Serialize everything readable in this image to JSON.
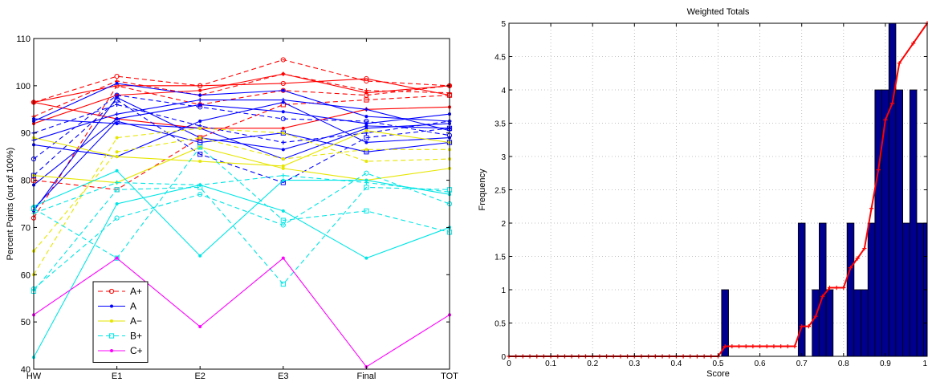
{
  "chart_data": [
    {
      "type": "line",
      "title": "",
      "xlabel": "",
      "ylabel": "Percent Points (out of 100%)",
      "categories": [
        "HW",
        "E1",
        "E2",
        "E3",
        "Final",
        "TOT"
      ],
      "ylim": [
        40,
        110
      ],
      "yticks": [
        40,
        50,
        60,
        70,
        80,
        90,
        100,
        110
      ],
      "grid": false,
      "legend_position": "bottom-left",
      "legend": [
        {
          "name": "A+",
          "color": "#ff0000",
          "dash": "dashed",
          "marker": "circle"
        },
        {
          "name": "A",
          "color": "#0000ff",
          "dash": "solid",
          "marker": "dot"
        },
        {
          "name": "A−",
          "color": "#e6e600",
          "dash": "solid",
          "marker": "dot"
        },
        {
          "name": "B+",
          "color": "#00e5e5",
          "dash": "dashed",
          "marker": "square"
        },
        {
          "name": "C+",
          "color": "#ff00ff",
          "dash": "solid",
          "marker": "dot"
        }
      ],
      "series": [
        {
          "group": "A+",
          "color": "#ff0000",
          "dash": "dashed",
          "marker": "circle",
          "values": [
            96.5,
            102,
            100,
            105.5,
            101,
            100
          ]
        },
        {
          "group": "A+",
          "color": "#ff0000",
          "dash": "dashed",
          "marker": "plus",
          "values": [
            93.5,
            101,
            98,
            102.5,
            99,
            98.5
          ]
        },
        {
          "group": "A+",
          "color": "#ff0000",
          "dash": "dashed",
          "marker": "circle",
          "values": [
            72,
            100,
            96,
            99,
            98,
            100
          ]
        },
        {
          "group": "A+",
          "color": "#ff0000",
          "dash": "dashed",
          "marker": "square",
          "values": [
            80,
            78,
            89,
            96,
            97,
            98
          ]
        },
        {
          "group": "A+",
          "color": "#ff0000",
          "dash": "solid",
          "marker": "circle",
          "values": [
            96.5,
            100,
            100,
            100.5,
            101.5,
            98
          ]
        },
        {
          "group": "A+",
          "color": "#ff0000",
          "dash": "solid",
          "marker": "dot",
          "values": [
            92,
            98,
            99,
            102.5,
            98.5,
            100
          ]
        },
        {
          "group": "A+",
          "color": "#ff0000",
          "dash": "solid",
          "marker": "dot",
          "values": [
            96.5,
            93,
            91,
            91,
            95,
            95.5
          ]
        },
        {
          "group": "A",
          "color": "#0000ff",
          "dash": "solid",
          "marker": "dot",
          "values": [
            92.5,
            100.5,
            98,
            99,
            93.5,
            92.5
          ]
        },
        {
          "group": "A",
          "color": "#0000ff",
          "dash": "solid",
          "marker": "dot",
          "values": [
            79,
            93,
            96,
            94.5,
            92,
            94
          ]
        },
        {
          "group": "A",
          "color": "#0000ff",
          "dash": "solid",
          "marker": "dot",
          "values": [
            73.5,
            97.5,
            89,
            86.5,
            91.5,
            91
          ]
        },
        {
          "group": "A",
          "color": "#0000ff",
          "dash": "solid",
          "marker": "dot",
          "values": [
            87.5,
            85,
            92.5,
            96.5,
            88,
            89
          ]
        },
        {
          "group": "A",
          "color": "#0000ff",
          "dash": "solid",
          "marker": "dot",
          "values": [
            93,
            92,
            91,
            84.5,
            91,
            92
          ]
        },
        {
          "group": "A",
          "color": "#0000ff",
          "dash": "solid",
          "marker": "plus",
          "values": [
            88.5,
            94,
            97,
            97,
            95,
            90.5
          ]
        },
        {
          "group": "A",
          "color": "#0000ff",
          "dash": "solid",
          "marker": "square",
          "values": [
            74,
            92.5,
            88,
            90,
            86,
            88
          ]
        },
        {
          "group": "A",
          "color": "#0000ff",
          "dash": "dashed",
          "marker": "circle",
          "values": [
            84.5,
            98,
            95.5,
            93,
            92.5,
            89.5
          ]
        },
        {
          "group": "A",
          "color": "#0000ff",
          "dash": "dashed",
          "marker": "square",
          "values": [
            81,
            97,
            85.5,
            79.5,
            89,
            91
          ]
        },
        {
          "group": "A",
          "color": "#0000ff",
          "dash": "dashed",
          "marker": "plus",
          "values": [
            90,
            96,
            91.5,
            88,
            90,
            92.5
          ]
        },
        {
          "group": "A−",
          "color": "#e6e600",
          "dash": "solid",
          "marker": "dot",
          "values": [
            89,
            85,
            84,
            83,
            90.5,
            88
          ]
        },
        {
          "group": "A−",
          "color": "#e6e600",
          "dash": "solid",
          "marker": "dot",
          "values": [
            81,
            79.5,
            87,
            82.5,
            80,
            82.5
          ]
        },
        {
          "group": "A−",
          "color": "#e6e600",
          "dash": "dashed",
          "marker": "dot",
          "values": [
            60,
            89,
            91,
            90,
            84,
            84.5
          ]
        },
        {
          "group": "A−",
          "color": "#e6e600",
          "dash": "dashed",
          "marker": "dot",
          "values": [
            65,
            86,
            89,
            84.5,
            86.5,
            86.5
          ]
        },
        {
          "group": "B+",
          "color": "#00e5e5",
          "dash": "solid",
          "marker": "dot",
          "values": [
            74.5,
            82,
            64,
            80,
            80,
            77
          ]
        },
        {
          "group": "B+",
          "color": "#00e5e5",
          "dash": "solid",
          "marker": "dot",
          "values": [
            42.5,
            75,
            79,
            73.5,
            63.5,
            70
          ]
        },
        {
          "group": "B+",
          "color": "#00e5e5",
          "dash": "dashed",
          "marker": "circle",
          "values": [
            57,
            72,
            77,
            70.5,
            81.5,
            75
          ]
        },
        {
          "group": "B+",
          "color": "#00e5e5",
          "dash": "dashed",
          "marker": "square",
          "values": [
            74,
            63.5,
            87,
            71.5,
            73.5,
            69
          ]
        },
        {
          "group": "B+",
          "color": "#00e5e5",
          "dash": "dashed",
          "marker": "square",
          "values": [
            56.5,
            78,
            78.5,
            58,
            78.5,
            78
          ]
        },
        {
          "group": "B+",
          "color": "#00e5e5",
          "dash": "dashed",
          "marker": "plus",
          "values": [
            73,
            79.5,
            79,
            81,
            79.5,
            77.5
          ]
        },
        {
          "group": "C+",
          "color": "#ff00ff",
          "dash": "solid",
          "marker": "dot",
          "values": [
            51.5,
            63.5,
            49,
            63.5,
            40.5,
            51.5
          ]
        }
      ]
    },
    {
      "type": "bar",
      "title": "Weighted Totals",
      "xlabel": "Score",
      "ylabel": "Frequency",
      "xlim": [
        0,
        1
      ],
      "ylim": [
        0,
        5
      ],
      "xticks": [
        0,
        0.1,
        0.2,
        0.3,
        0.4,
        0.5,
        0.6,
        0.7,
        0.8,
        0.9,
        1
      ],
      "xtick_labels": [
        "0",
        "0.1",
        "0.2",
        "0.3",
        "0.4",
        "0.5",
        "0.6",
        "0.7",
        "0.8",
        "0.9",
        "1"
      ],
      "yticks": [
        0,
        0.5,
        1,
        1.5,
        2,
        2.5,
        3,
        3.5,
        4,
        4.5,
        5
      ],
      "ytick_labels": [
        "0",
        "0.5",
        "1",
        "1.5",
        "2",
        "2.5",
        "3",
        "3.5",
        "4",
        "4.5",
        "5"
      ],
      "grid": true,
      "bar_color": "#00008f",
      "bar_width": 0.0167,
      "bars": [
        {
          "x": 0.5167,
          "value": 1
        },
        {
          "x": 0.7,
          "value": 2
        },
        {
          "x": 0.7333,
          "value": 1
        },
        {
          "x": 0.75,
          "value": 2
        },
        {
          "x": 0.7667,
          "value": 1
        },
        {
          "x": 0.8167,
          "value": 2
        },
        {
          "x": 0.8333,
          "value": 1
        },
        {
          "x": 0.85,
          "value": 1
        },
        {
          "x": 0.8667,
          "value": 2
        },
        {
          "x": 0.8833,
          "value": 4
        },
        {
          "x": 0.9,
          "value": 4
        },
        {
          "x": 0.9167,
          "value": 5
        },
        {
          "x": 0.9333,
          "value": 4
        },
        {
          "x": 0.95,
          "value": 2
        },
        {
          "x": 0.9667,
          "value": 4
        },
        {
          "x": 0.9833,
          "value": 2
        },
        {
          "x": 1.0,
          "value": 2
        }
      ],
      "cdf_line": {
        "color": "#ff0000",
        "marker": "plus",
        "points": [
          [
            0,
            0
          ],
          [
            0.0167,
            0
          ],
          [
            0.0333,
            0
          ],
          [
            0.05,
            0
          ],
          [
            0.0667,
            0
          ],
          [
            0.0833,
            0
          ],
          [
            0.1,
            0
          ],
          [
            0.1167,
            0
          ],
          [
            0.1333,
            0
          ],
          [
            0.15,
            0
          ],
          [
            0.1667,
            0
          ],
          [
            0.1833,
            0
          ],
          [
            0.2,
            0
          ],
          [
            0.2167,
            0
          ],
          [
            0.2333,
            0
          ],
          [
            0.25,
            0
          ],
          [
            0.2667,
            0
          ],
          [
            0.2833,
            0
          ],
          [
            0.3,
            0
          ],
          [
            0.3167,
            0
          ],
          [
            0.3333,
            0
          ],
          [
            0.35,
            0
          ],
          [
            0.3667,
            0
          ],
          [
            0.3833,
            0
          ],
          [
            0.4,
            0
          ],
          [
            0.4167,
            0
          ],
          [
            0.4333,
            0
          ],
          [
            0.45,
            0
          ],
          [
            0.4667,
            0
          ],
          [
            0.4833,
            0
          ],
          [
            0.5,
            0
          ],
          [
            0.5167,
            0.15
          ],
          [
            0.5333,
            0.15
          ],
          [
            0.55,
            0.15
          ],
          [
            0.5667,
            0.15
          ],
          [
            0.5833,
            0.15
          ],
          [
            0.6,
            0.15
          ],
          [
            0.6167,
            0.15
          ],
          [
            0.6333,
            0.15
          ],
          [
            0.65,
            0.15
          ],
          [
            0.6667,
            0.15
          ],
          [
            0.6833,
            0.15
          ],
          [
            0.7,
            0.45
          ],
          [
            0.7167,
            0.45
          ],
          [
            0.7333,
            0.6
          ],
          [
            0.75,
            0.9
          ],
          [
            0.7667,
            1.03
          ],
          [
            0.7833,
            1.03
          ],
          [
            0.8,
            1.03
          ],
          [
            0.8167,
            1.33
          ],
          [
            0.8333,
            1.47
          ],
          [
            0.85,
            1.62
          ],
          [
            0.8667,
            2.22
          ],
          [
            0.8833,
            2.8
          ],
          [
            0.9,
            3.55
          ],
          [
            0.9167,
            3.8
          ],
          [
            0.9333,
            4.4
          ],
          [
            0.9667,
            4.7
          ],
          [
            1.0,
            5.0
          ]
        ]
      }
    }
  ]
}
